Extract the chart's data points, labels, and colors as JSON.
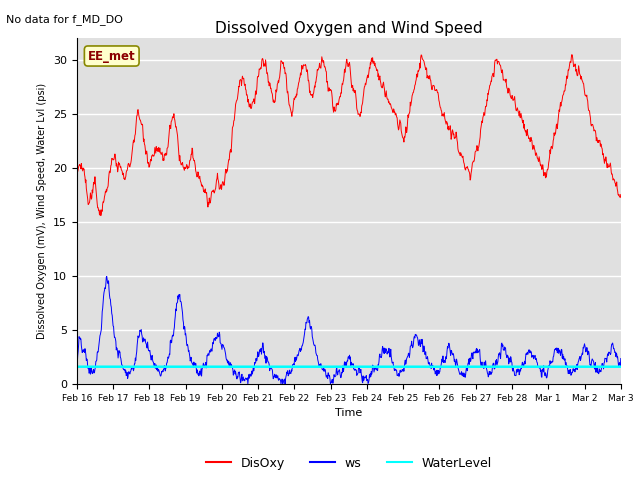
{
  "title": "Dissolved Oxygen and Wind Speed",
  "ylabel": "Dissolved Oxygen (mV), Wind Speed, Water Lvl (psi)",
  "xlabel": "Time",
  "no_data_text": "No data for f_MD_DO",
  "annotation_box": "EE_met",
  "ylim": [
    0,
    32
  ],
  "yticks": [
    0,
    5,
    10,
    15,
    20,
    25,
    30
  ],
  "legend_labels": [
    "DisOxy",
    "ws",
    "WaterLevel"
  ],
  "legend_colors": [
    "red",
    "blue",
    "cyan"
  ],
  "bg_color": "#e0e0e0",
  "fig_color": "#ffffff",
  "disoxy_color": "red",
  "ws_color": "blue",
  "wl_color": "cyan",
  "wl_data": 1.6,
  "n_points": 400,
  "xtick_labels": [
    "Feb 16",
    "Feb 17",
    "Feb 18",
    "Feb 19",
    "Feb 20",
    "Feb 21",
    "Feb 22",
    "Feb 23",
    "Feb 24",
    "Feb 25",
    "Feb 26",
    "Feb 27",
    "Feb 28",
    "Mar 1",
    "Mar 2",
    "Mar 3"
  ],
  "disoxy_keypoints": [
    [
      0,
      19.5
    ],
    [
      8,
      20.5
    ],
    [
      15,
      20.0
    ],
    [
      20,
      18.5
    ],
    [
      25,
      16.5
    ],
    [
      35,
      17.5
    ],
    [
      40,
      18.5
    ],
    [
      45,
      17.0
    ],
    [
      50,
      16.2
    ],
    [
      55,
      16.0
    ],
    [
      60,
      17.0
    ],
    [
      65,
      18.0
    ],
    [
      70,
      19.0
    ],
    [
      75,
      20.0
    ],
    [
      80,
      20.5
    ],
    [
      85,
      21.0
    ],
    [
      90,
      20.5
    ],
    [
      95,
      20.0
    ],
    [
      100,
      19.5
    ],
    [
      105,
      19.0
    ],
    [
      110,
      19.5
    ],
    [
      115,
      20.0
    ],
    [
      120,
      21.0
    ],
    [
      125,
      22.5
    ],
    [
      130,
      24.0
    ],
    [
      135,
      25.0
    ],
    [
      140,
      24.5
    ],
    [
      145,
      23.5
    ],
    [
      150,
      22.5
    ],
    [
      155,
      21.5
    ],
    [
      160,
      20.5
    ],
    [
      165,
      21.0
    ],
    [
      170,
      21.5
    ],
    [
      175,
      22.0
    ],
    [
      180,
      21.5
    ],
    [
      185,
      21.0
    ],
    [
      190,
      20.5
    ],
    [
      195,
      21.0
    ],
    [
      200,
      22.0
    ],
    [
      205,
      23.5
    ],
    [
      210,
      24.5
    ],
    [
      215,
      24.2
    ],
    [
      220,
      23.0
    ],
    [
      225,
      21.5
    ],
    [
      230,
      20.5
    ],
    [
      235,
      20.0
    ],
    [
      240,
      19.5
    ],
    [
      245,
      20.0
    ],
    [
      250,
      20.5
    ],
    [
      255,
      21.0
    ],
    [
      260,
      20.0
    ],
    [
      265,
      19.5
    ],
    [
      270,
      19.0
    ],
    [
      275,
      18.5
    ],
    [
      280,
      18.0
    ],
    [
      285,
      17.5
    ],
    [
      290,
      17.0
    ],
    [
      295,
      16.5
    ],
    [
      300,
      17.0
    ],
    [
      305,
      18.0
    ],
    [
      310,
      19.0
    ],
    [
      315,
      18.5
    ],
    [
      320,
      18.0
    ],
    [
      325,
      18.5
    ],
    [
      330,
      19.5
    ],
    [
      335,
      21.0
    ],
    [
      340,
      22.5
    ],
    [
      345,
      24.0
    ],
    [
      350,
      25.5
    ],
    [
      355,
      27.0
    ],
    [
      360,
      28.0
    ],
    [
      365,
      28.5
    ],
    [
      370,
      28.0
    ],
    [
      375,
      27.0
    ],
    [
      380,
      26.0
    ],
    [
      385,
      25.5
    ],
    [
      390,
      26.5
    ],
    [
      395,
      27.5
    ],
    [
      400,
      28.5
    ],
    [
      405,
      29.5
    ],
    [
      410,
      30.0
    ],
    [
      415,
      29.5
    ],
    [
      420,
      28.5
    ],
    [
      425,
      27.5
    ],
    [
      430,
      26.5
    ],
    [
      435,
      26.0
    ],
    [
      440,
      27.0
    ],
    [
      445,
      28.0
    ],
    [
      450,
      29.0
    ],
    [
      455,
      29.5
    ],
    [
      460,
      28.5
    ],
    [
      465,
      27.0
    ],
    [
      470,
      25.5
    ],
    [
      475,
      25.0
    ],
    [
      480,
      26.0
    ],
    [
      485,
      27.0
    ],
    [
      490,
      28.0
    ],
    [
      495,
      29.0
    ],
    [
      500,
      29.5
    ],
    [
      505,
      29.0
    ],
    [
      510,
      28.0
    ],
    [
      515,
      27.0
    ],
    [
      520,
      26.5
    ],
    [
      525,
      27.5
    ],
    [
      530,
      28.5
    ],
    [
      535,
      29.5
    ],
    [
      540,
      30.0
    ],
    [
      545,
      29.5
    ],
    [
      550,
      28.5
    ],
    [
      555,
      27.5
    ],
    [
      560,
      26.5
    ],
    [
      565,
      25.5
    ],
    [
      570,
      25.0
    ],
    [
      575,
      26.0
    ],
    [
      580,
      27.0
    ],
    [
      585,
      28.0
    ],
    [
      590,
      29.0
    ],
    [
      595,
      30.0
    ],
    [
      600,
      29.5
    ],
    [
      605,
      28.5
    ],
    [
      610,
      27.5
    ],
    [
      615,
      26.5
    ],
    [
      620,
      25.5
    ],
    [
      625,
      25.0
    ],
    [
      630,
      26.0
    ],
    [
      635,
      27.5
    ],
    [
      640,
      28.5
    ],
    [
      645,
      29.5
    ],
    [
      650,
      30.0
    ],
    [
      655,
      29.5
    ],
    [
      660,
      29.0
    ],
    [
      665,
      28.5
    ],
    [
      670,
      28.0
    ],
    [
      675,
      27.5
    ],
    [
      680,
      27.0
    ],
    [
      685,
      26.5
    ],
    [
      690,
      26.0
    ],
    [
      695,
      25.5
    ],
    [
      700,
      25.0
    ],
    [
      705,
      24.5
    ],
    [
      710,
      24.0
    ],
    [
      715,
      23.5
    ],
    [
      720,
      23.0
    ],
    [
      725,
      23.5
    ],
    [
      730,
      24.5
    ],
    [
      735,
      25.5
    ],
    [
      740,
      26.5
    ],
    [
      745,
      27.5
    ],
    [
      750,
      28.5
    ],
    [
      755,
      29.5
    ],
    [
      760,
      30.0
    ],
    [
      765,
      29.5
    ],
    [
      770,
      29.0
    ],
    [
      775,
      28.5
    ],
    [
      780,
      28.0
    ],
    [
      785,
      27.5
    ],
    [
      790,
      27.0
    ],
    [
      795,
      26.5
    ],
    [
      800,
      26.0
    ],
    [
      805,
      25.5
    ],
    [
      810,
      25.0
    ],
    [
      815,
      24.5
    ],
    [
      820,
      24.0
    ],
    [
      825,
      23.5
    ],
    [
      830,
      23.0
    ],
    [
      835,
      22.5
    ],
    [
      840,
      22.0
    ],
    [
      845,
      21.5
    ],
    [
      850,
      21.0
    ],
    [
      855,
      20.5
    ],
    [
      860,
      20.0
    ],
    [
      865,
      19.5
    ],
    [
      870,
      19.5
    ],
    [
      875,
      20.5
    ],
    [
      880,
      21.5
    ],
    [
      885,
      22.5
    ],
    [
      890,
      23.5
    ],
    [
      895,
      24.5
    ],
    [
      900,
      25.5
    ],
    [
      905,
      26.5
    ],
    [
      910,
      27.5
    ],
    [
      915,
      28.5
    ],
    [
      920,
      29.5
    ],
    [
      925,
      30.0
    ],
    [
      930,
      29.5
    ],
    [
      935,
      29.0
    ],
    [
      940,
      28.5
    ],
    [
      945,
      28.0
    ],
    [
      950,
      27.5
    ],
    [
      955,
      27.0
    ],
    [
      960,
      26.5
    ],
    [
      965,
      26.0
    ],
    [
      970,
      25.5
    ],
    [
      975,
      25.0
    ],
    [
      980,
      24.5
    ],
    [
      985,
      24.0
    ],
    [
      990,
      23.5
    ],
    [
      995,
      23.0
    ],
    [
      1000,
      22.5
    ],
    [
      1005,
      22.0
    ],
    [
      1010,
      21.5
    ],
    [
      1015,
      21.0
    ],
    [
      1020,
      20.5
    ],
    [
      1025,
      20.0
    ],
    [
      1030,
      19.5
    ],
    [
      1035,
      19.5
    ],
    [
      1040,
      20.5
    ],
    [
      1045,
      21.5
    ],
    [
      1050,
      22.5
    ],
    [
      1055,
      23.5
    ],
    [
      1060,
      24.5
    ],
    [
      1065,
      25.5
    ],
    [
      1070,
      26.5
    ],
    [
      1075,
      27.5
    ],
    [
      1080,
      28.5
    ],
    [
      1085,
      29.5
    ],
    [
      1090,
      30.0
    ],
    [
      1095,
      29.5
    ],
    [
      1100,
      29.0
    ],
    [
      1105,
      28.5
    ],
    [
      1110,
      28.0
    ],
    [
      1115,
      27.5
    ],
    [
      1120,
      27.0
    ],
    [
      1125,
      26.0
    ],
    [
      1130,
      25.0
    ],
    [
      1135,
      24.0
    ],
    [
      1140,
      23.5
    ],
    [
      1145,
      23.0
    ],
    [
      1150,
      22.5
    ],
    [
      1155,
      22.0
    ],
    [
      1160,
      21.5
    ],
    [
      1165,
      21.0
    ],
    [
      1170,
      20.5
    ],
    [
      1175,
      20.0
    ],
    [
      1180,
      19.5
    ],
    [
      1185,
      19.0
    ],
    [
      1190,
      18.5
    ],
    [
      1195,
      18.0
    ]
  ],
  "ws_keypoints": [
    [
      0,
      1.5
    ],
    [
      5,
      4.0
    ],
    [
      10,
      3.5
    ],
    [
      15,
      3.0
    ],
    [
      20,
      2.5
    ],
    [
      25,
      1.5
    ],
    [
      30,
      1.2
    ],
    [
      35,
      1.0
    ],
    [
      40,
      1.5
    ],
    [
      45,
      2.5
    ],
    [
      50,
      4.0
    ],
    [
      55,
      5.5
    ],
    [
      60,
      8.5
    ],
    [
      65,
      10.0
    ],
    [
      70,
      9.0
    ],
    [
      75,
      7.5
    ],
    [
      80,
      5.5
    ],
    [
      85,
      4.0
    ],
    [
      90,
      3.0
    ],
    [
      95,
      2.5
    ],
    [
      100,
      2.0
    ],
    [
      105,
      1.5
    ],
    [
      110,
      1.2
    ],
    [
      115,
      1.0
    ],
    [
      120,
      1.2
    ],
    [
      125,
      1.5
    ],
    [
      130,
      2.5
    ],
    [
      135,
      4.5
    ],
    [
      140,
      5.0
    ],
    [
      145,
      4.5
    ],
    [
      150,
      4.0
    ],
    [
      155,
      3.5
    ],
    [
      160,
      3.0
    ],
    [
      165,
      2.5
    ],
    [
      170,
      2.0
    ],
    [
      175,
      1.5
    ],
    [
      180,
      1.2
    ],
    [
      185,
      1.0
    ],
    [
      190,
      1.2
    ],
    [
      195,
      1.5
    ],
    [
      200,
      2.0
    ],
    [
      205,
      3.0
    ],
    [
      210,
      4.5
    ],
    [
      215,
      5.5
    ],
    [
      220,
      7.5
    ],
    [
      225,
      8.5
    ],
    [
      230,
      7.5
    ],
    [
      235,
      6.0
    ],
    [
      240,
      4.5
    ],
    [
      245,
      3.5
    ],
    [
      250,
      2.5
    ],
    [
      255,
      2.0
    ],
    [
      260,
      1.5
    ],
    [
      265,
      1.2
    ],
    [
      270,
      1.0
    ],
    [
      275,
      1.2
    ],
    [
      280,
      1.5
    ],
    [
      285,
      2.0
    ],
    [
      290,
      2.5
    ],
    [
      295,
      3.0
    ],
    [
      300,
      3.5
    ],
    [
      305,
      4.0
    ],
    [
      310,
      4.5
    ],
    [
      315,
      4.0
    ],
    [
      320,
      3.5
    ],
    [
      325,
      3.0
    ],
    [
      330,
      2.5
    ],
    [
      335,
      2.0
    ],
    [
      340,
      1.5
    ],
    [
      345,
      1.2
    ],
    [
      350,
      1.0
    ],
    [
      355,
      0.8
    ],
    [
      360,
      0.6
    ],
    [
      365,
      0.5
    ],
    [
      370,
      0.5
    ],
    [
      375,
      0.6
    ],
    [
      380,
      0.8
    ],
    [
      385,
      1.0
    ],
    [
      390,
      1.5
    ],
    [
      395,
      2.0
    ],
    [
      400,
      2.5
    ],
    [
      405,
      3.0
    ],
    [
      410,
      3.5
    ],
    [
      415,
      2.5
    ],
    [
      420,
      2.0
    ],
    [
      425,
      1.5
    ],
    [
      430,
      1.2
    ],
    [
      435,
      1.0
    ],
    [
      440,
      0.8
    ],
    [
      445,
      0.6
    ],
    [
      450,
      0.5
    ],
    [
      455,
      0.5
    ],
    [
      460,
      0.6
    ],
    [
      465,
      0.8
    ],
    [
      470,
      1.0
    ],
    [
      475,
      1.5
    ],
    [
      480,
      2.0
    ],
    [
      485,
      2.5
    ],
    [
      490,
      3.0
    ],
    [
      495,
      3.5
    ],
    [
      500,
      4.5
    ],
    [
      505,
      5.5
    ],
    [
      510,
      6.5
    ],
    [
      515,
      5.5
    ],
    [
      520,
      4.5
    ],
    [
      525,
      3.5
    ],
    [
      530,
      2.5
    ],
    [
      535,
      2.0
    ],
    [
      540,
      1.5
    ],
    [
      545,
      1.2
    ],
    [
      550,
      1.0
    ],
    [
      555,
      0.8
    ],
    [
      560,
      0.5
    ],
    [
      565,
      0.5
    ],
    [
      570,
      0.6
    ],
    [
      575,
      0.8
    ],
    [
      580,
      1.0
    ],
    [
      585,
      1.2
    ],
    [
      590,
      1.5
    ],
    [
      595,
      2.0
    ],
    [
      600,
      2.5
    ],
    [
      605,
      2.0
    ],
    [
      610,
      1.5
    ],
    [
      615,
      1.2
    ],
    [
      620,
      1.0
    ],
    [
      625,
      0.8
    ],
    [
      630,
      0.6
    ],
    [
      635,
      0.5
    ],
    [
      640,
      0.5
    ],
    [
      645,
      0.6
    ],
    [
      650,
      0.8
    ],
    [
      655,
      1.0
    ],
    [
      660,
      1.5
    ],
    [
      665,
      2.0
    ],
    [
      670,
      2.5
    ],
    [
      675,
      3.0
    ],
    [
      680,
      3.5
    ],
    [
      685,
      3.0
    ],
    [
      690,
      2.5
    ],
    [
      695,
      2.0
    ],
    [
      700,
      1.5
    ],
    [
      705,
      1.2
    ],
    [
      710,
      1.0
    ],
    [
      715,
      1.2
    ],
    [
      720,
      1.5
    ],
    [
      725,
      2.0
    ],
    [
      730,
      2.5
    ],
    [
      735,
      3.0
    ],
    [
      740,
      3.5
    ],
    [
      745,
      4.0
    ],
    [
      750,
      4.5
    ],
    [
      755,
      4.0
    ],
    [
      760,
      3.5
    ],
    [
      765,
      3.0
    ],
    [
      770,
      2.5
    ],
    [
      775,
      2.0
    ],
    [
      780,
      1.5
    ],
    [
      785,
      1.2
    ],
    [
      790,
      1.0
    ],
    [
      795,
      1.2
    ],
    [
      800,
      1.5
    ],
    [
      805,
      2.0
    ],
    [
      810,
      2.5
    ],
    [
      815,
      3.0
    ],
    [
      820,
      3.5
    ],
    [
      825,
      3.0
    ],
    [
      830,
      2.5
    ],
    [
      835,
      2.0
    ],
    [
      840,
      1.5
    ],
    [
      845,
      1.2
    ],
    [
      850,
      1.0
    ],
    [
      855,
      1.2
    ],
    [
      860,
      1.5
    ],
    [
      865,
      2.0
    ],
    [
      870,
      2.5
    ],
    [
      875,
      3.0
    ],
    [
      880,
      3.5
    ],
    [
      885,
      3.0
    ],
    [
      890,
      2.5
    ],
    [
      895,
      2.0
    ],
    [
      900,
      1.5
    ],
    [
      905,
      1.2
    ],
    [
      910,
      1.0
    ],
    [
      915,
      1.2
    ],
    [
      920,
      1.5
    ],
    [
      925,
      2.0
    ],
    [
      930,
      2.5
    ],
    [
      935,
      3.0
    ],
    [
      940,
      3.5
    ],
    [
      945,
      3.0
    ],
    [
      950,
      2.5
    ],
    [
      955,
      2.0
    ],
    [
      960,
      1.5
    ],
    [
      965,
      1.2
    ],
    [
      970,
      1.0
    ],
    [
      975,
      1.2
    ],
    [
      980,
      1.5
    ],
    [
      985,
      2.0
    ],
    [
      990,
      2.5
    ],
    [
      995,
      3.0
    ],
    [
      1000,
      3.5
    ],
    [
      1005,
      3.0
    ],
    [
      1010,
      2.5
    ],
    [
      1015,
      2.0
    ],
    [
      1020,
      1.5
    ],
    [
      1025,
      1.2
    ],
    [
      1030,
      1.0
    ],
    [
      1035,
      1.2
    ],
    [
      1040,
      1.5
    ],
    [
      1045,
      2.0
    ],
    [
      1050,
      2.5
    ],
    [
      1055,
      3.0
    ],
    [
      1060,
      3.5
    ],
    [
      1065,
      3.0
    ],
    [
      1070,
      2.5
    ],
    [
      1075,
      2.0
    ],
    [
      1080,
      1.5
    ],
    [
      1085,
      1.2
    ],
    [
      1090,
      1.0
    ],
    [
      1095,
      1.2
    ],
    [
      1100,
      1.5
    ],
    [
      1105,
      2.0
    ],
    [
      1110,
      2.5
    ],
    [
      1115,
      3.0
    ],
    [
      1120,
      3.5
    ],
    [
      1125,
      3.0
    ],
    [
      1130,
      2.5
    ],
    [
      1135,
      2.0
    ],
    [
      1140,
      1.5
    ],
    [
      1145,
      1.2
    ],
    [
      1150,
      1.0
    ],
    [
      1155,
      1.2
    ],
    [
      1160,
      1.5
    ],
    [
      1165,
      2.0
    ],
    [
      1170,
      2.5
    ],
    [
      1175,
      3.0
    ],
    [
      1180,
      3.5
    ],
    [
      1185,
      3.0
    ],
    [
      1190,
      2.5
    ],
    [
      1195,
      2.0
    ]
  ]
}
